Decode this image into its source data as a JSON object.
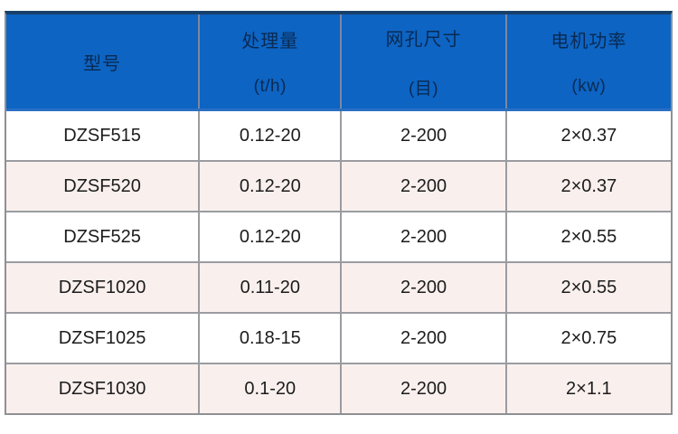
{
  "table": {
    "title": "screen-model-specifications",
    "columns": [
      {
        "label": "型号",
        "unit": ""
      },
      {
        "label": "处理量",
        "unit": "(t/h)"
      },
      {
        "label": "网孔尺寸",
        "unit": "(目)"
      },
      {
        "label": "电机功率",
        "unit": "(kw)"
      }
    ],
    "rows": [
      {
        "cells": [
          "DZSF515",
          "0.12-20",
          "2-200",
          "2×0.37"
        ]
      },
      {
        "cells": [
          "DZSF520",
          "0.12-20",
          "2-200",
          "2×0.37"
        ]
      },
      {
        "cells": [
          "DZSF525",
          "0.12-20",
          "2-200",
          "2×0.55"
        ]
      },
      {
        "cells": [
          "DZSF1020",
          "0.11-20",
          "2-200",
          "2×0.55"
        ]
      },
      {
        "cells": [
          "DZSF1025",
          "0.18-15",
          "2-200",
          "2×0.75"
        ]
      },
      {
        "cells": [
          "DZSF1030",
          "0.1-20",
          "2-200",
          "2×1.1"
        ]
      }
    ],
    "colors": {
      "header_bg": "#0d64c3",
      "header_text": "#0a2a52",
      "header_top_border": "#17406b",
      "header_bottom_border": "#2a6fc4",
      "row_alt_bg": "#f9f0ee",
      "grid_line": "#9a9ca0"
    }
  }
}
